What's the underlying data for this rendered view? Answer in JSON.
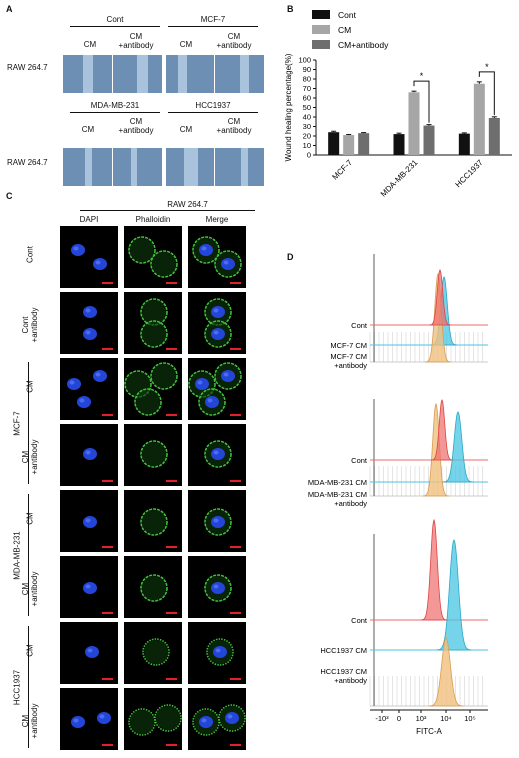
{
  "panel_a": {
    "label": "A",
    "groups": [
      {
        "title": "Cont",
        "cm": "CM",
        "antibody": "CM\n+antibody"
      },
      {
        "title": "MCF-7",
        "cm": "CM",
        "antibody": "CM\n+antibody"
      },
      {
        "title": "MDA-MB-231",
        "cm": "CM",
        "antibody": "CM\n+antibody"
      },
      {
        "title": "HCC1937",
        "cm": "CM",
        "antibody": "CM\n+antibody"
      }
    ],
    "row_label": "RAW 264.7"
  },
  "panel_b": {
    "label": "B",
    "chart_data": {
      "type": "bar",
      "categories": [
        "MCF-7",
        "MDA-MB-231",
        "HCC1937"
      ],
      "series": [
        {
          "name": "Cont",
          "values": [
            24,
            22,
            22.5
          ],
          "errors": [
            1,
            1,
            0.8
          ],
          "color": "#111111"
        },
        {
          "name": "CM",
          "values": [
            21,
            66,
            75
          ],
          "errors": [
            0.6,
            1.2,
            2
          ],
          "color": "#a6a6a6"
        },
        {
          "name": "CM+antibody",
          "values": [
            23,
            31,
            39
          ],
          "errors": [
            0.6,
            1,
            1.2
          ],
          "color": "#6e6e6e"
        }
      ],
      "ylabel": "Wound healing percentage(%)",
      "ylim": [
        0,
        100
      ],
      "yticks": [
        0,
        10,
        20,
        30,
        40,
        50,
        60,
        70,
        80,
        90,
        100
      ],
      "significance": [
        "*",
        "*"
      ],
      "legend_position": "top"
    }
  },
  "panel_c": {
    "label": "C",
    "header": "RAW 264.7",
    "columns": [
      "DAPI",
      "Phalloidin",
      "Merge"
    ],
    "rows": [
      "Cont",
      "Cont\n+antibody",
      "CM",
      "CM\n+antibody",
      "CM",
      "CM\n+antibody",
      "CM",
      "CM\n+antibody"
    ],
    "groups": [
      "MCF-7",
      "MDA-MB-231",
      "HCC1937"
    ]
  },
  "panel_d": {
    "label": "D",
    "xlabel": "FITC-A",
    "xticks": [
      "-10³",
      "0",
      "10³",
      "10⁴",
      "10⁵"
    ],
    "blocks": [
      {
        "labels": [
          "Cont",
          "MCF-7 CM",
          "MCF-7 CM\n+antibody"
        ]
      },
      {
        "labels": [
          "Cont",
          "MDA-MB-231 CM",
          "MDA-MB-231 CM\n+antibody"
        ]
      },
      {
        "labels": [
          "Cont",
          "HCC1937 CM",
          "HCC1937 CM\n+antibody"
        ]
      }
    ],
    "colors": {
      "cont": "#ee6b6b",
      "cm": "#48c6e3",
      "antibody": "#f1bf7e"
    }
  }
}
